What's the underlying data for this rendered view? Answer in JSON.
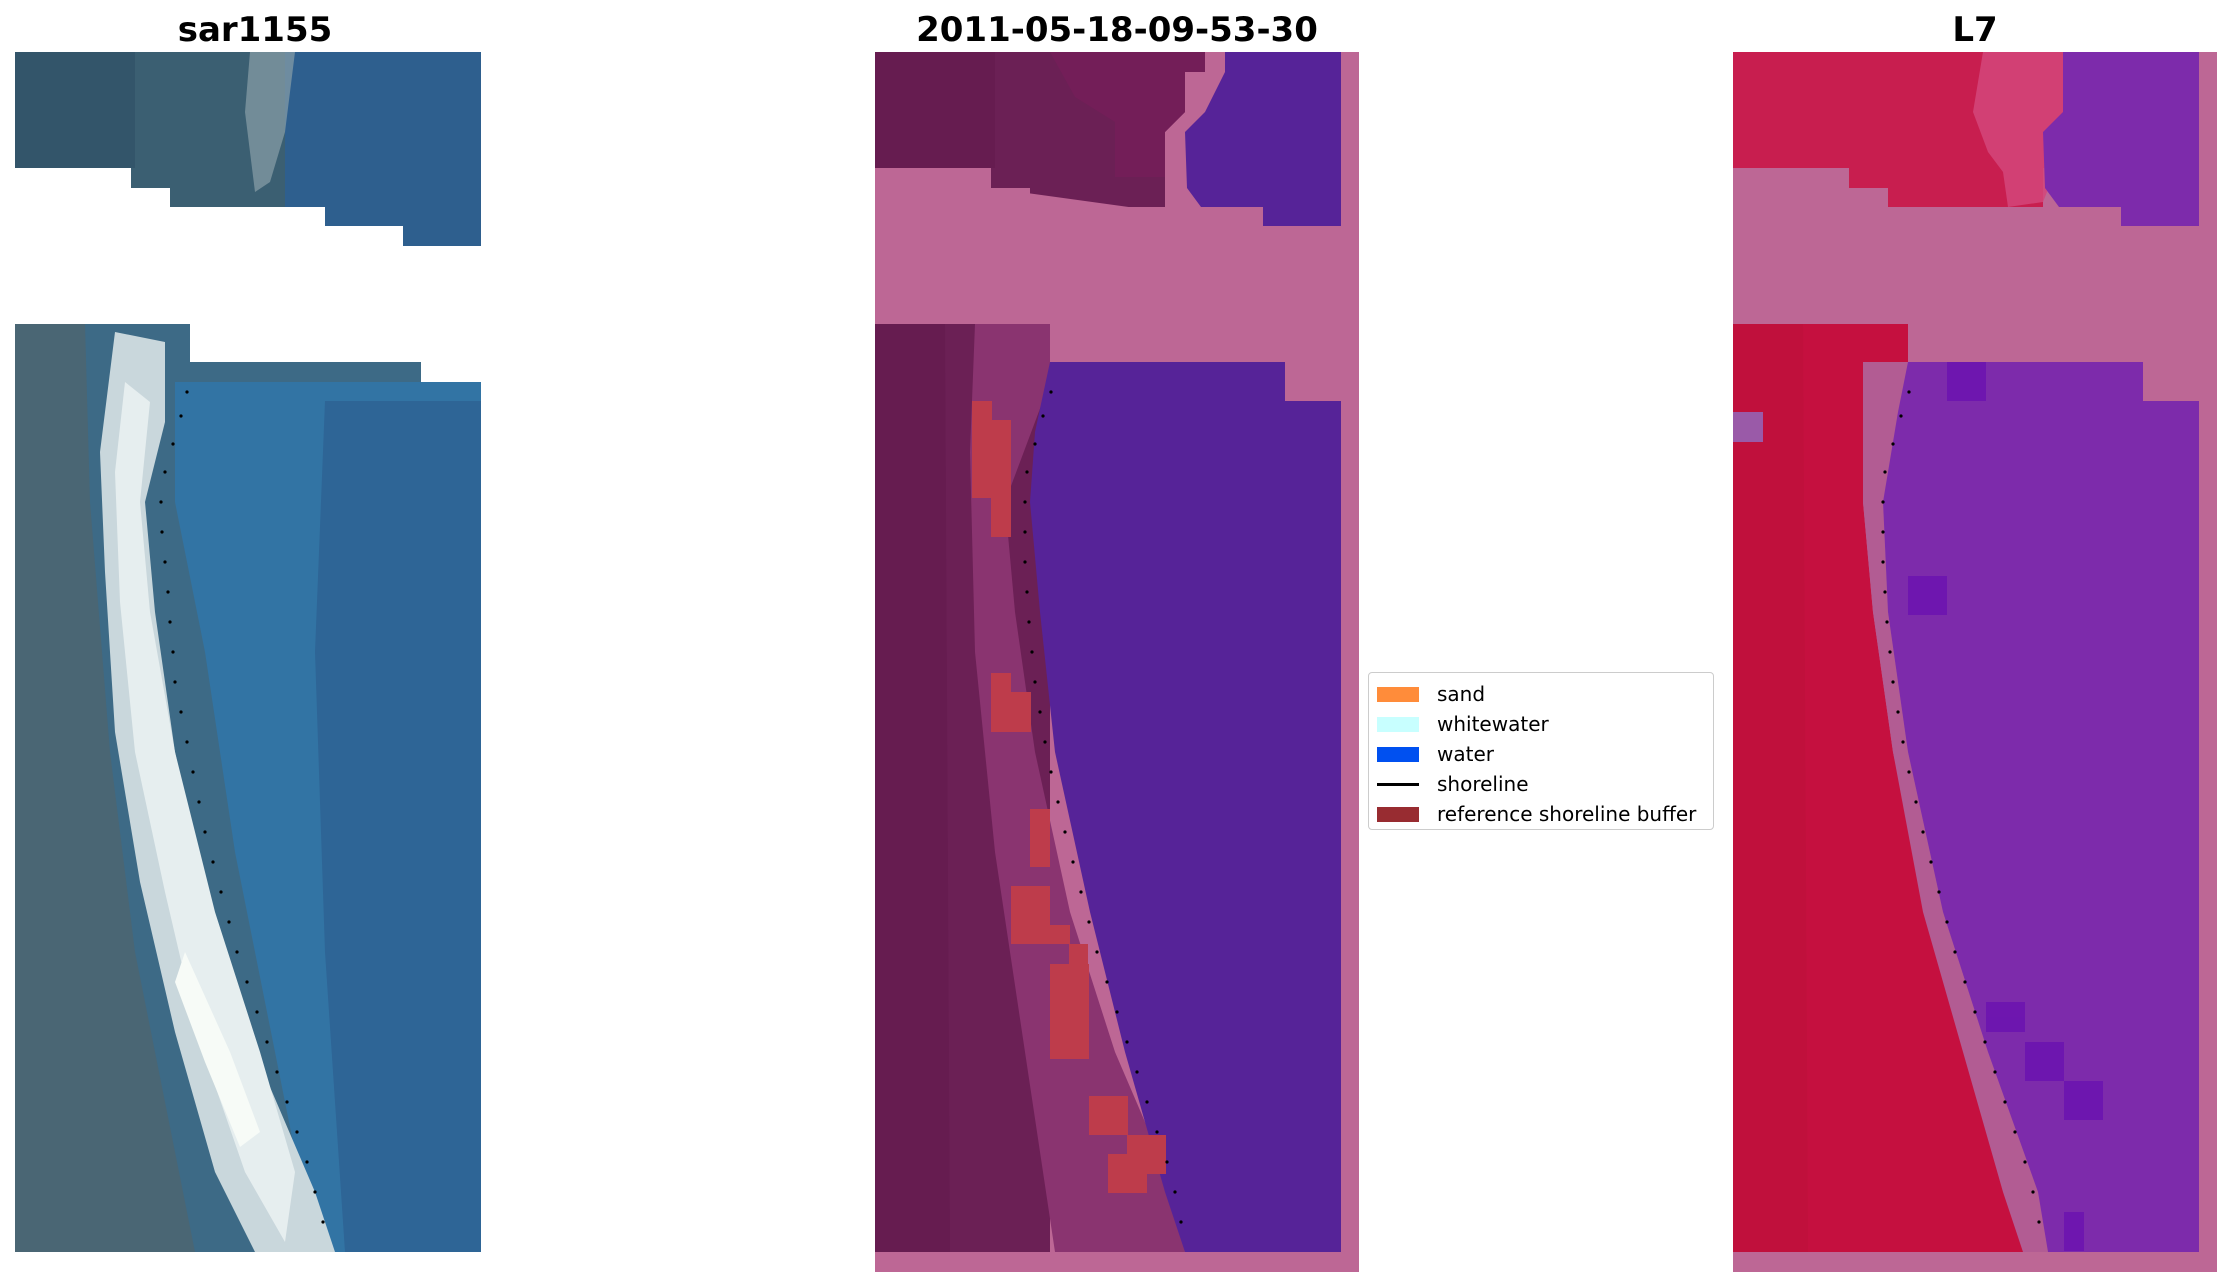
{
  "panels": [
    {
      "title": "sar1155"
    },
    {
      "title": "2011-05-18-09-53-30"
    },
    {
      "title": "L7"
    }
  ],
  "legend": {
    "items": [
      {
        "label": "sand",
        "color": "#ff8c3a",
        "kind": "patch"
      },
      {
        "label": "whitewater",
        "color": "#c8ffff",
        "kind": "patch"
      },
      {
        "label": "water",
        "color": "#0050f0",
        "kind": "patch"
      },
      {
        "label": "shoreline",
        "color": "#000000",
        "kind": "line"
      },
      {
        "label": "reference shoreline buffer",
        "color": "#982c31",
        "kind": "patch"
      }
    ]
  },
  "colors": {
    "rgb_land": "#3f5f6e",
    "rgb_water": "#2d6aa0",
    "rgb_sand": "#d8e4e4",
    "class_land": "#6b2055",
    "class_water": "#562398",
    "class_nodata": "#bd6795",
    "class_buffer": "#be3c4b",
    "nir_land": "#c81e46",
    "nir_water": "#7d2bab",
    "nir_nodata": "#bd6795",
    "shoreline": "#000000"
  }
}
